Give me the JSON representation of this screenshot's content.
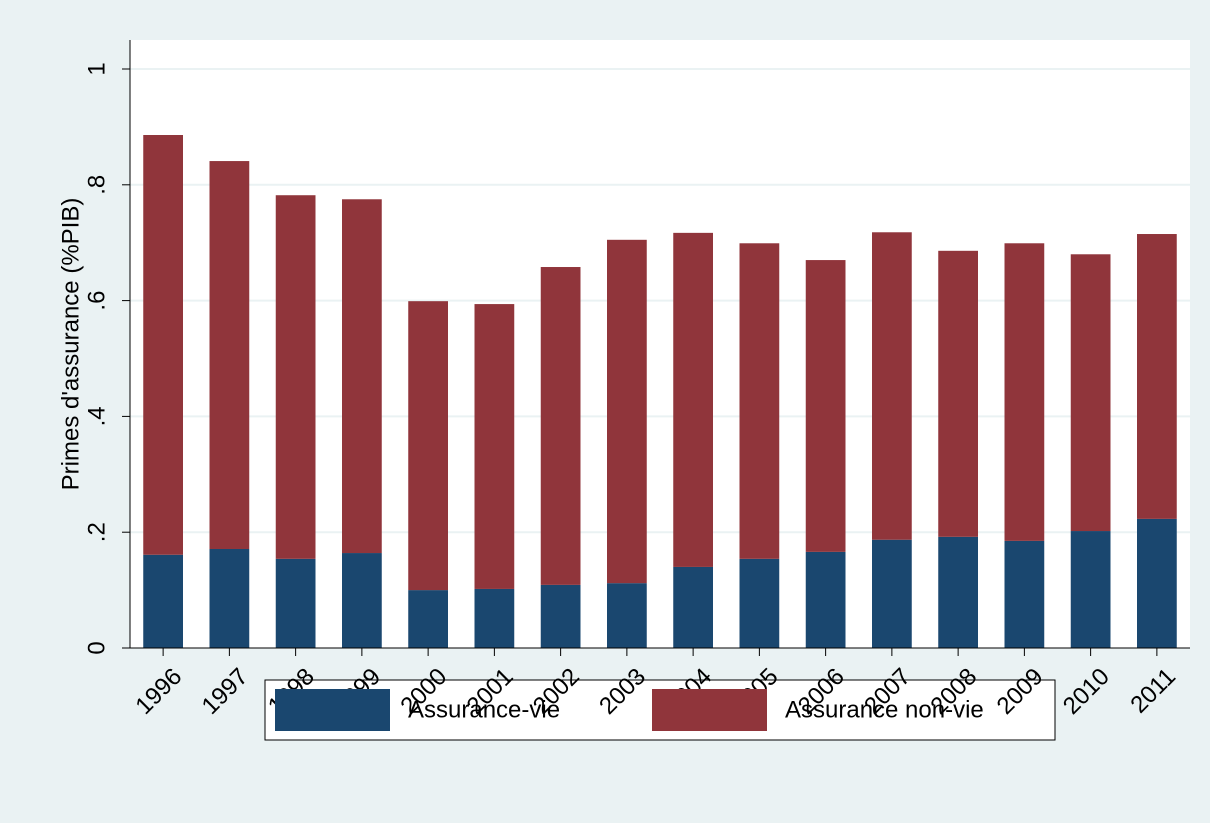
{
  "chart_data": {
    "type": "stacked_bar",
    "y_label": "Primes d'assurance (%PIB)",
    "categories": [
      "1996",
      "1997",
      "1998",
      "1999",
      "2000",
      "2001",
      "2002",
      "2003",
      "2004",
      "2005",
      "2006",
      "2007",
      "2008",
      "2009",
      "2010",
      "2011"
    ],
    "series": [
      {
        "name": "Assurance-vie",
        "color": "#1a476f",
        "values": [
          0.161,
          0.171,
          0.154,
          0.164,
          0.1,
          0.102,
          0.109,
          0.112,
          0.14,
          0.154,
          0.166,
          0.187,
          0.192,
          0.185,
          0.202,
          0.223
        ]
      },
      {
        "name": "Assurance non-vie",
        "color": "#90353b",
        "values": [
          0.725,
          0.67,
          0.628,
          0.611,
          0.499,
          0.492,
          0.549,
          0.593,
          0.577,
          0.545,
          0.504,
          0.531,
          0.494,
          0.514,
          0.478,
          0.492
        ]
      }
    ],
    "ylim": [
      0,
      1.05
    ],
    "yticks": [
      0,
      {
        "value": 0.2,
        "label": ".2"
      },
      {
        "value": 0.4,
        "label": ".4"
      },
      {
        "value": 0.6,
        "label": ".6"
      },
      {
        "value": 0.8,
        "label": ".8"
      },
      1
    ],
    "grid": true,
    "legend": "bottom"
  }
}
